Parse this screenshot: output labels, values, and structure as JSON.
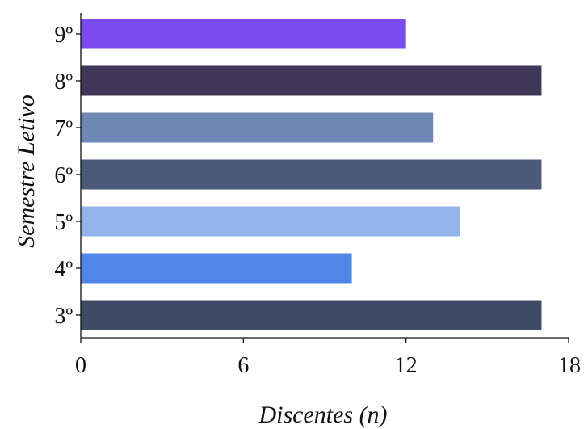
{
  "chart_data": {
    "type": "bar",
    "orientation": "horizontal",
    "title": "",
    "xlabel": "Discentes (n)",
    "ylabel": "Semestre Letivo",
    "xlim": [
      0,
      18
    ],
    "xticks": [
      "0",
      "6",
      "12",
      "18"
    ],
    "grid": false,
    "legend": "none",
    "categories": [
      "3º",
      "4º",
      "5º",
      "6º",
      "7º",
      "8º",
      "9º"
    ],
    "values": [
      17,
      10,
      14,
      17,
      13,
      17,
      12
    ],
    "colors": [
      "#3f4a66",
      "#4f86e8",
      "#92b4ea",
      "#4a5a78",
      "#6d88b4",
      "#3f3758",
      "#7a4bee"
    ]
  }
}
